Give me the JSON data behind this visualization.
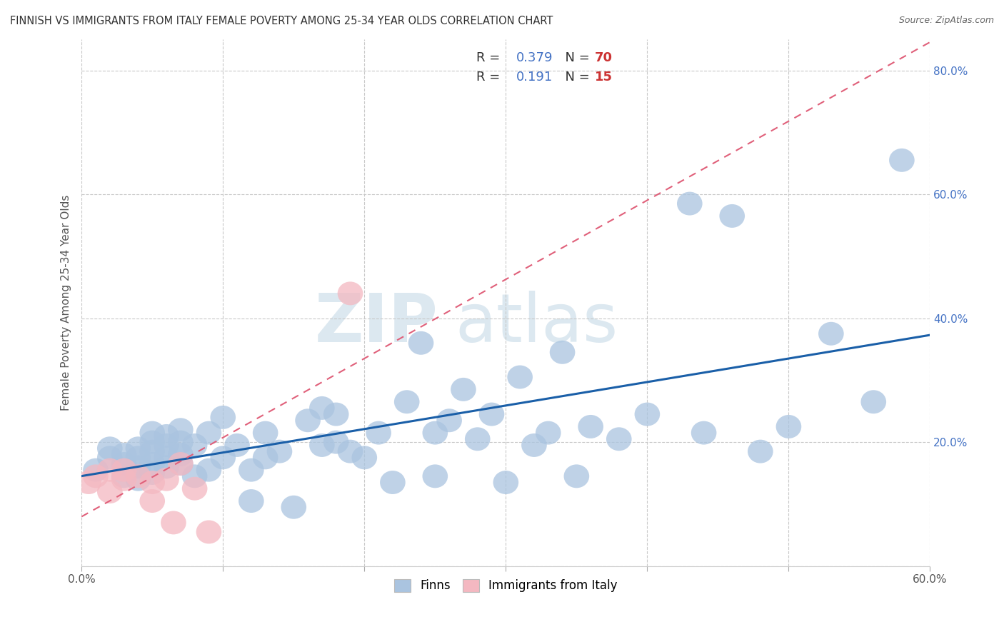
{
  "title": "FINNISH VS IMMIGRANTS FROM ITALY FEMALE POVERTY AMONG 25-34 YEAR OLDS CORRELATION CHART",
  "source": "Source: ZipAtlas.com",
  "ylabel": "Female Poverty Among 25-34 Year Olds",
  "xlim": [
    0.0,
    0.6
  ],
  "ylim": [
    0.0,
    0.85
  ],
  "xticks": [
    0.0,
    0.1,
    0.2,
    0.3,
    0.4,
    0.5,
    0.6
  ],
  "yticks": [
    0.0,
    0.2,
    0.4,
    0.6,
    0.8
  ],
  "grid_color": "#c8c8c8",
  "background_color": "#ffffff",
  "finns_color": "#aac4e0",
  "italy_color": "#f4b8c1",
  "finns_line_color": "#1a5fa8",
  "italy_line_color": "#e0607a",
  "legend_r_finns": "0.379",
  "legend_n_finns": "70",
  "legend_r_italy": "0.191",
  "legend_n_italy": "15",
  "finns_x": [
    0.01,
    0.02,
    0.02,
    0.03,
    0.03,
    0.03,
    0.04,
    0.04,
    0.04,
    0.04,
    0.05,
    0.05,
    0.05,
    0.05,
    0.05,
    0.06,
    0.06,
    0.06,
    0.06,
    0.07,
    0.07,
    0.07,
    0.07,
    0.08,
    0.08,
    0.09,
    0.09,
    0.1,
    0.1,
    0.11,
    0.12,
    0.12,
    0.13,
    0.13,
    0.14,
    0.15,
    0.16,
    0.17,
    0.17,
    0.18,
    0.18,
    0.19,
    0.2,
    0.21,
    0.22,
    0.23,
    0.24,
    0.25,
    0.25,
    0.26,
    0.27,
    0.28,
    0.29,
    0.3,
    0.31,
    0.32,
    0.33,
    0.34,
    0.35,
    0.36,
    0.38,
    0.4,
    0.43,
    0.44,
    0.46,
    0.48,
    0.5,
    0.53,
    0.56,
    0.58
  ],
  "finns_y": [
    0.155,
    0.175,
    0.19,
    0.145,
    0.165,
    0.18,
    0.14,
    0.16,
    0.175,
    0.19,
    0.15,
    0.165,
    0.185,
    0.2,
    0.215,
    0.16,
    0.175,
    0.195,
    0.21,
    0.165,
    0.18,
    0.2,
    0.22,
    0.145,
    0.195,
    0.155,
    0.215,
    0.175,
    0.24,
    0.195,
    0.105,
    0.155,
    0.215,
    0.175,
    0.185,
    0.095,
    0.235,
    0.195,
    0.255,
    0.2,
    0.245,
    0.185,
    0.175,
    0.215,
    0.135,
    0.265,
    0.36,
    0.145,
    0.215,
    0.235,
    0.285,
    0.205,
    0.245,
    0.135,
    0.305,
    0.195,
    0.215,
    0.345,
    0.145,
    0.225,
    0.205,
    0.245,
    0.585,
    0.215,
    0.565,
    0.185,
    0.225,
    0.375,
    0.265,
    0.655
  ],
  "italy_x": [
    0.005,
    0.01,
    0.02,
    0.02,
    0.03,
    0.03,
    0.04,
    0.05,
    0.05,
    0.06,
    0.065,
    0.07,
    0.08,
    0.09,
    0.19
  ],
  "italy_y": [
    0.135,
    0.145,
    0.12,
    0.155,
    0.14,
    0.155,
    0.145,
    0.135,
    0.105,
    0.14,
    0.07,
    0.165,
    0.125,
    0.055,
    0.44
  ]
}
